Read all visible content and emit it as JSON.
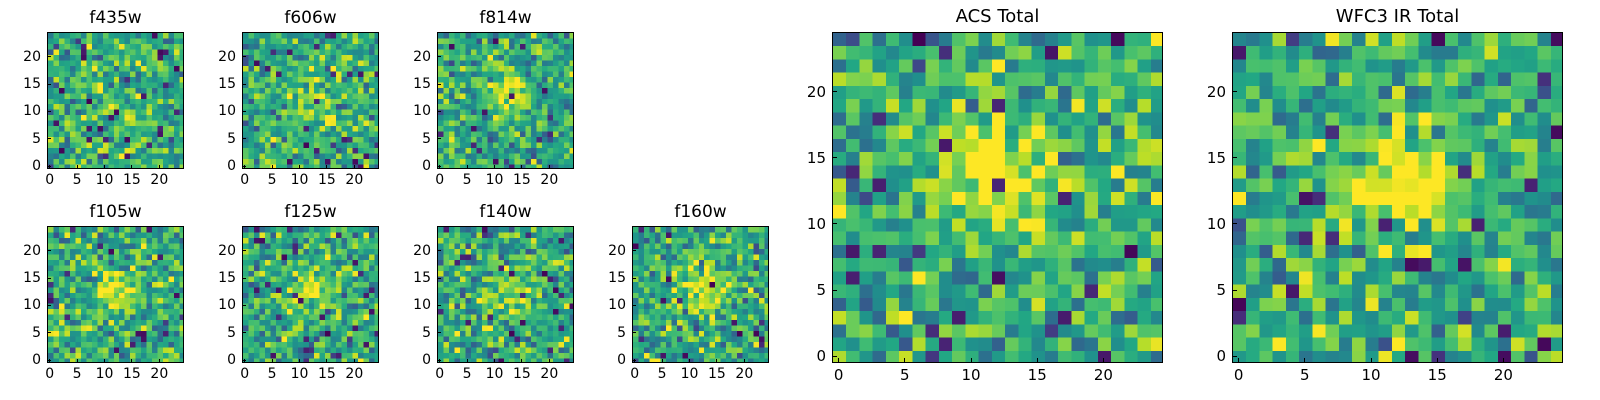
{
  "chart_data": [
    {
      "type": "heatmap",
      "title": "f435w",
      "grid_size": 25,
      "xlim": [
        -0.5,
        24.5
      ],
      "ylim": [
        -0.5,
        24.5
      ],
      "xticks": [
        0,
        5,
        10,
        15,
        20
      ],
      "yticks": [
        0,
        5,
        10,
        15,
        20
      ],
      "colormap": "viridis",
      "grid": false,
      "peak": [
        12,
        10
      ],
      "peak_strength": 0.1,
      "seed": 11
    },
    {
      "type": "heatmap",
      "title": "f606w",
      "grid_size": 25,
      "xlim": [
        -0.5,
        24.5
      ],
      "ylim": [
        -0.5,
        24.5
      ],
      "xticks": [
        0,
        5,
        10,
        15,
        20
      ],
      "yticks": [
        0,
        5,
        10,
        15,
        20
      ],
      "colormap": "viridis",
      "grid": false,
      "peak": [
        12,
        12
      ],
      "peak_strength": 0.3,
      "seed": 23
    },
    {
      "type": "heatmap",
      "title": "f814w",
      "grid_size": 25,
      "xlim": [
        -0.5,
        24.5
      ],
      "ylim": [
        -0.5,
        24.5
      ],
      "xticks": [
        0,
        5,
        10,
        15,
        20
      ],
      "yticks": [
        0,
        5,
        10,
        15,
        20
      ],
      "colormap": "viridis",
      "grid": false,
      "peak": [
        13,
        13
      ],
      "peak_strength": 0.35,
      "seed": 37
    },
    {
      "type": "heatmap",
      "title": "f105w",
      "grid_size": 25,
      "xlim": [
        -0.5,
        24.5
      ],
      "ylim": [
        -0.5,
        24.5
      ],
      "xticks": [
        0,
        5,
        10,
        15,
        20
      ],
      "yticks": [
        0,
        5,
        10,
        15,
        20
      ],
      "colormap": "viridis",
      "grid": false,
      "peak": [
        12,
        13
      ],
      "peak_strength": 0.35,
      "seed": 41
    },
    {
      "type": "heatmap",
      "title": "f125w",
      "grid_size": 25,
      "xlim": [
        -0.5,
        24.5
      ],
      "ylim": [
        -0.5,
        24.5
      ],
      "xticks": [
        0,
        5,
        10,
        15,
        20
      ],
      "yticks": [
        0,
        5,
        10,
        15,
        20
      ],
      "colormap": "viridis",
      "grid": false,
      "peak": [
        12,
        13
      ],
      "peak_strength": 0.3,
      "seed": 53
    },
    {
      "type": "heatmap",
      "title": "f140w",
      "grid_size": 25,
      "xlim": [
        -0.5,
        24.5
      ],
      "ylim": [
        -0.5,
        24.5
      ],
      "xticks": [
        0,
        5,
        10,
        15,
        20
      ],
      "yticks": [
        0,
        5,
        10,
        15,
        20
      ],
      "colormap": "viridis",
      "grid": false,
      "peak": [
        13,
        13
      ],
      "peak_strength": 0.3,
      "seed": 67
    },
    {
      "type": "heatmap",
      "title": "f160w",
      "grid_size": 25,
      "xlim": [
        -0.5,
        24.5
      ],
      "ylim": [
        -0.5,
        24.5
      ],
      "xticks": [
        0,
        5,
        10,
        15,
        20
      ],
      "yticks": [
        0,
        5,
        10,
        15,
        20
      ],
      "colormap": "viridis",
      "grid": false,
      "peak": [
        13,
        13
      ],
      "peak_strength": 0.4,
      "seed": 79
    },
    {
      "type": "heatmap",
      "title": "ACS Total",
      "grid_size": 25,
      "xlim": [
        -0.5,
        24.5
      ],
      "ylim": [
        -0.5,
        24.5
      ],
      "xticks": [
        0,
        5,
        10,
        15,
        20
      ],
      "yticks": [
        0,
        5,
        10,
        15,
        20
      ],
      "colormap": "viridis",
      "grid": false,
      "peak": [
        12,
        14
      ],
      "peak_strength": 0.5,
      "seed": 97
    },
    {
      "type": "heatmap",
      "title": "WFC3 IR Total",
      "grid_size": 25,
      "xlim": [
        -0.5,
        24.5
      ],
      "ylim": [
        -0.5,
        24.5
      ],
      "xticks": [
        0,
        5,
        10,
        15,
        20
      ],
      "yticks": [
        0,
        5,
        10,
        15,
        20
      ],
      "colormap": "viridis",
      "grid": false,
      "peak": [
        12,
        13
      ],
      "peak_strength": 0.5,
      "seed": 113
    }
  ]
}
